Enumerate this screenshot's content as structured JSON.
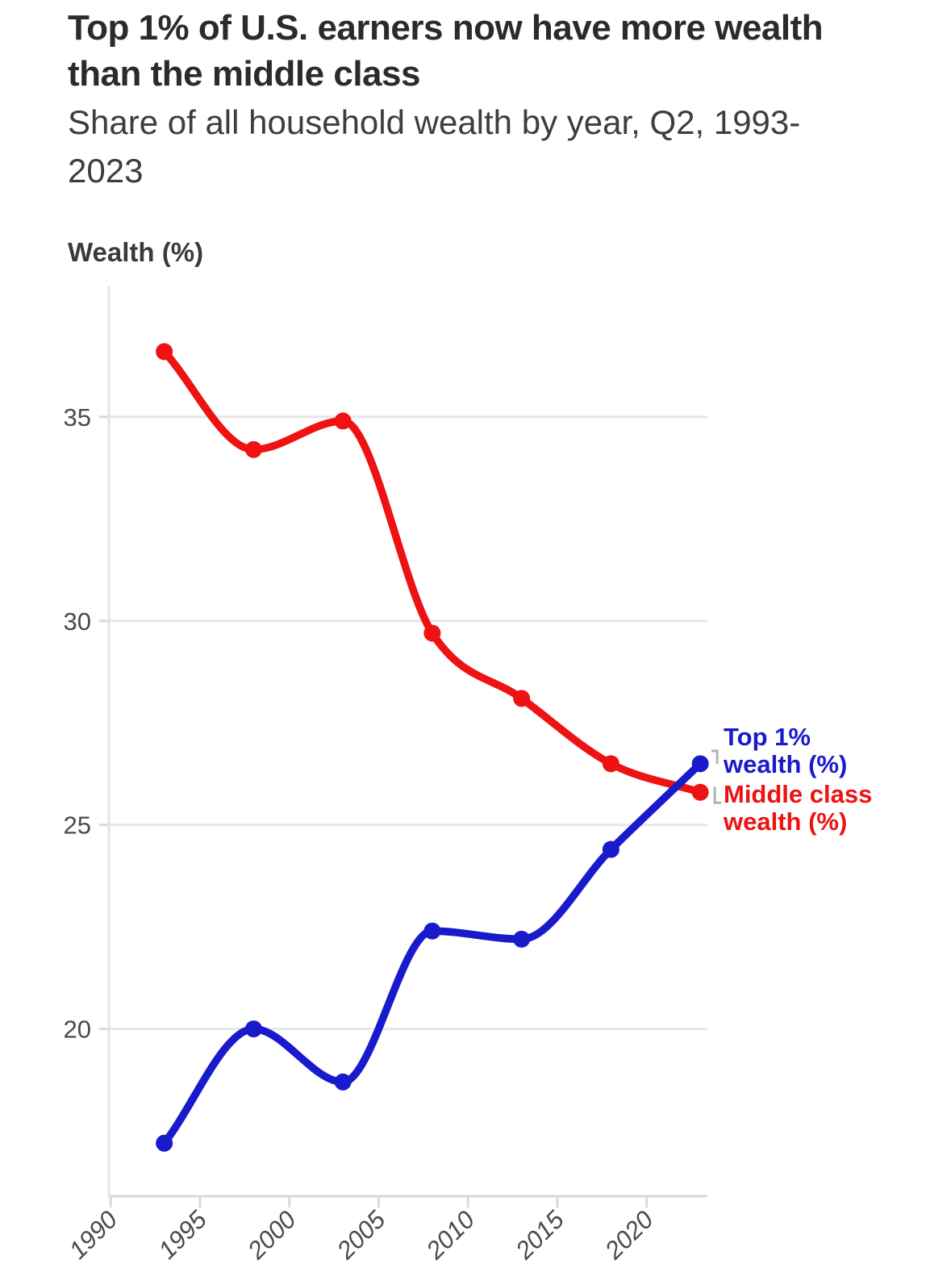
{
  "header": {
    "title": "Top 1% of U.S. earners now have more wealth than the middle class",
    "subtitle": "Share of all household wealth by year, Q2, 1993-2023"
  },
  "chart_data": {
    "type": "line",
    "title": "Top 1% of U.S. earners now have more wealth than the middle class",
    "subtitle": "Share of all household wealth by year, Q2, 1993-2023",
    "ylabel": "Wealth (%)",
    "xlabel": "",
    "x": [
      1993,
      1998,
      2003,
      2008,
      2013,
      2018,
      2023
    ],
    "series": [
      {
        "name": "Top 1% wealth (%)",
        "color": "#1a1acd",
        "values": [
          17.2,
          20.0,
          18.7,
          22.4,
          22.2,
          24.4,
          26.5
        ]
      },
      {
        "name": "Middle class wealth (%)",
        "color": "#ee1212",
        "values": [
          36.6,
          34.2,
          34.9,
          29.7,
          28.1,
          26.5,
          25.8
        ]
      }
    ],
    "x_ticks": [
      1990,
      1995,
      2000,
      2005,
      2010,
      2015,
      2020
    ],
    "y_ticks": [
      20,
      25,
      30,
      35
    ],
    "xlim": [
      1989.9,
      2023.4
    ],
    "ylim": [
      15.9,
      38.2
    ],
    "grid": "horizontal",
    "legend": "direct line labels at right edge",
    "colors": {
      "grid": "#e7e7e7",
      "axis": "#d9d9d9",
      "tick_text": "#4a4a4a",
      "leader": "#b3b3b3"
    }
  }
}
